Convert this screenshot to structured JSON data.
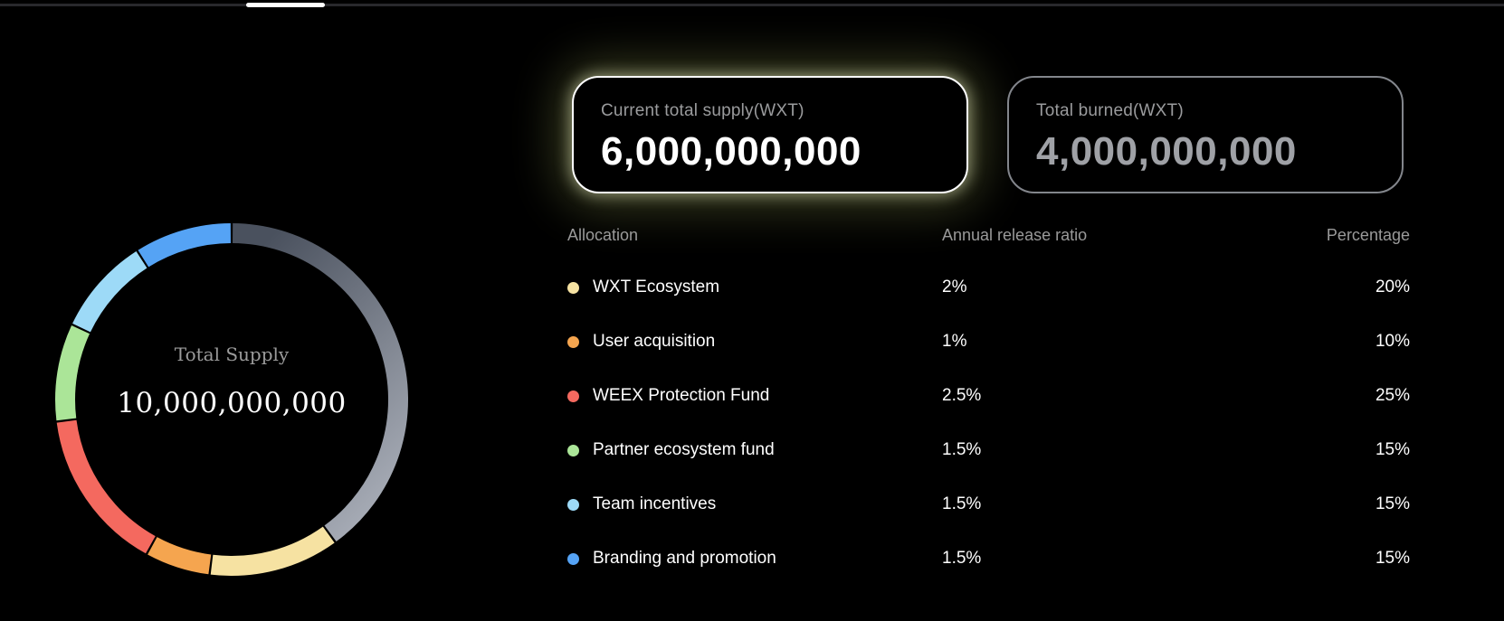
{
  "page": {
    "background": "#000000"
  },
  "scrollbar": {
    "track_color": "#28282c",
    "thumb_color": "#ffffff"
  },
  "stats_cards": [
    {
      "label": "Current total supply(WXT)",
      "value": "6,000,000,000",
      "highlighted": true,
      "border_color": "#ffffff",
      "glow_color": "#d4e278"
    },
    {
      "label": "Total burned(WXT)",
      "value": "4,000,000,000",
      "highlighted": false,
      "border_color": "#83868c"
    }
  ],
  "chart_data": {
    "type": "pie",
    "donut": true,
    "center_label": "Total Supply",
    "center_value": "10,000,000,000",
    "start_angle_deg": 0,
    "legend_position": "table-right",
    "segments": [
      {
        "label": "",
        "circle_percent": 40,
        "color_start": "#4a515e",
        "color_end": "#a9aeb8"
      },
      {
        "label": "WXT Ecosystem",
        "circle_percent": 12,
        "allocation_percent": 20,
        "color": "#f6e2a2"
      },
      {
        "label": "User acquisition",
        "circle_percent": 6,
        "allocation_percent": 10,
        "color": "#f5a54f"
      },
      {
        "label": "WEEX Protection Fund",
        "circle_percent": 15,
        "allocation_percent": 25,
        "color": "#f4695f"
      },
      {
        "label": "Partner ecosystem fund",
        "circle_percent": 9,
        "allocation_percent": 15,
        "color": "#abe598"
      },
      {
        "label": "Team incentives",
        "circle_percent": 9,
        "allocation_percent": 15,
        "color": "#9ddaf7"
      },
      {
        "label": "Branding and promotion",
        "circle_percent": 9,
        "allocation_percent": 15,
        "color": "#55a3f5"
      }
    ]
  },
  "table": {
    "headers": [
      "Allocation",
      "Annual release ratio",
      "Percentage"
    ],
    "rows": [
      {
        "name": "WXT Ecosystem",
        "dot_color": "#f6e2a2",
        "annual_release_ratio": "2%",
        "percentage": "20%"
      },
      {
        "name": "User acquisition",
        "dot_color": "#f5a54f",
        "annual_release_ratio": "1%",
        "percentage": "10%"
      },
      {
        "name": "WEEX Protection Fund",
        "dot_color": "#f4695f",
        "annual_release_ratio": "2.5%",
        "percentage": "25%"
      },
      {
        "name": "Partner ecosystem fund",
        "dot_color": "#abe598",
        "annual_release_ratio": "1.5%",
        "percentage": "15%"
      },
      {
        "name": "Team incentives",
        "dot_color": "#9ddaf7",
        "annual_release_ratio": "1.5%",
        "percentage": "15%"
      },
      {
        "name": "Branding and promotion",
        "dot_color": "#55a3f5",
        "annual_release_ratio": "1.5%",
        "percentage": "15%"
      }
    ]
  }
}
